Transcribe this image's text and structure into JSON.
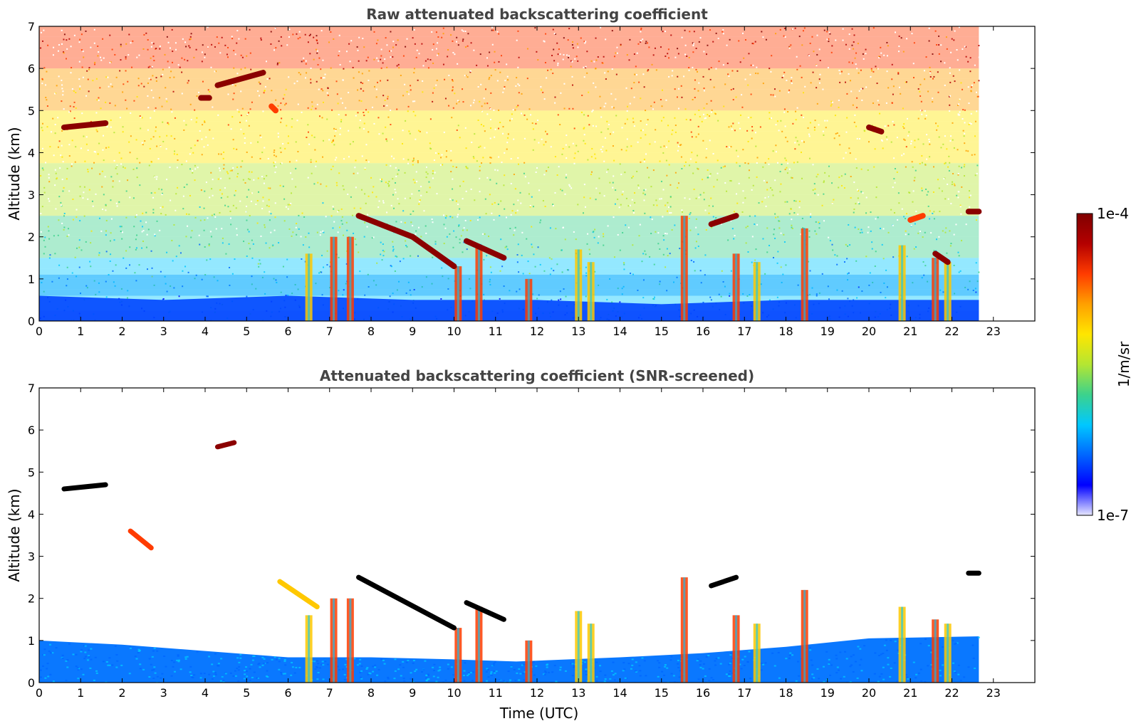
{
  "chart_data": [
    {
      "type": "heatmap",
      "title": "Raw attenuated backscattering coefficient",
      "xlabel": "",
      "ylabel": "Altitude (km)",
      "x_ticks": [
        "0",
        "1",
        "2",
        "3",
        "4",
        "5",
        "6",
        "7",
        "8",
        "9",
        "10",
        "11",
        "12",
        "13",
        "14",
        "15",
        "16",
        "17",
        "18",
        "19",
        "20",
        "21",
        "22",
        "23"
      ],
      "y_ticks": [
        "0",
        "1",
        "2",
        "3",
        "4",
        "5",
        "6",
        "7"
      ],
      "xlim": [
        0,
        24
      ],
      "ylim": [
        0,
        7
      ],
      "data_extent_hours": 22.65,
      "aerosol_layer_top_km": [
        [
          0,
          0.6
        ],
        [
          3,
          0.5
        ],
        [
          6,
          0.6
        ],
        [
          9,
          0.5
        ],
        [
          12,
          0.5
        ],
        [
          15,
          0.4
        ],
        [
          18,
          0.5
        ],
        [
          21,
          0.5
        ],
        [
          22.65,
          0.5
        ]
      ],
      "cloud_layers": [
        {
          "x": [
            0.6,
            1.6
          ],
          "y": [
            4.6,
            4.7
          ],
          "level": "max"
        },
        {
          "x": [
            3.9,
            4.1
          ],
          "y": [
            5.3,
            5.3
          ],
          "level": "max"
        },
        {
          "x": [
            4.3,
            5.4
          ],
          "y": [
            5.6,
            5.9
          ],
          "level": "max"
        },
        {
          "x": [
            5.6,
            5.7
          ],
          "y": [
            5.1,
            5.0
          ],
          "level": "high"
        },
        {
          "x": [
            7.7,
            9.0
          ],
          "y": [
            2.5,
            2.0
          ],
          "level": "max"
        },
        {
          "x": [
            9.0,
            10.0
          ],
          "y": [
            2.0,
            1.3
          ],
          "level": "max"
        },
        {
          "x": [
            10.3,
            11.2
          ],
          "y": [
            1.9,
            1.5
          ],
          "level": "max"
        },
        {
          "x": [
            16.2,
            16.8
          ],
          "y": [
            2.3,
            2.5
          ],
          "level": "max"
        },
        {
          "x": [
            20.0,
            20.3
          ],
          "y": [
            4.6,
            4.5
          ],
          "level": "max"
        },
        {
          "x": [
            21.0,
            21.3
          ],
          "y": [
            2.4,
            2.5
          ],
          "level": "high"
        },
        {
          "x": [
            21.6,
            21.9
          ],
          "y": [
            1.6,
            1.4
          ],
          "level": "max"
        },
        {
          "x": [
            22.4,
            22.65
          ],
          "y": [
            2.6,
            2.6
          ],
          "level": "max"
        }
      ],
      "precipitation_columns": [
        {
          "x": 6.5,
          "top_km": 1.6,
          "level": "mid"
        },
        {
          "x": 7.1,
          "top_km": 2.0,
          "level": "high"
        },
        {
          "x": 7.5,
          "top_km": 2.0,
          "level": "high"
        },
        {
          "x": 10.1,
          "top_km": 1.3,
          "level": "high"
        },
        {
          "x": 10.6,
          "top_km": 1.8,
          "level": "high"
        },
        {
          "x": 11.8,
          "top_km": 1.0,
          "level": "high"
        },
        {
          "x": 13.0,
          "top_km": 1.7,
          "level": "mid"
        },
        {
          "x": 13.3,
          "top_km": 1.4,
          "level": "mid"
        },
        {
          "x": 15.55,
          "top_km": 2.5,
          "level": "high"
        },
        {
          "x": 16.8,
          "top_km": 1.6,
          "level": "high"
        },
        {
          "x": 17.3,
          "top_km": 1.4,
          "level": "mid"
        },
        {
          "x": 18.45,
          "top_km": 2.2,
          "level": "high"
        },
        {
          "x": 20.8,
          "top_km": 1.8,
          "level": "mid"
        },
        {
          "x": 21.6,
          "top_km": 1.5,
          "level": "high"
        },
        {
          "x": 21.9,
          "top_km": 1.4,
          "level": "mid"
        }
      ]
    },
    {
      "type": "heatmap",
      "title": "Attenuated backscattering coefficient (SNR-screened)",
      "xlabel": "Time (UTC)",
      "ylabel": "Altitude (km)",
      "x_ticks": [
        "0",
        "1",
        "2",
        "3",
        "4",
        "5",
        "6",
        "7",
        "8",
        "9",
        "10",
        "11",
        "12",
        "13",
        "14",
        "15",
        "16",
        "17",
        "18",
        "19",
        "20",
        "21",
        "22",
        "23"
      ],
      "y_ticks": [
        "0",
        "1",
        "2",
        "3",
        "4",
        "5",
        "6",
        "7"
      ],
      "xlim": [
        0,
        24
      ],
      "ylim": [
        0,
        7
      ],
      "data_extent_hours": 22.65,
      "boundary_layer_top_km": [
        [
          0,
          1.0
        ],
        [
          2,
          0.9
        ],
        [
          4,
          0.75
        ],
        [
          6,
          0.6
        ],
        [
          8,
          0.6
        ],
        [
          10,
          0.55
        ],
        [
          11.5,
          0.5
        ],
        [
          14,
          0.6
        ],
        [
          16,
          0.7
        ],
        [
          18,
          0.85
        ],
        [
          20,
          1.05
        ],
        [
          22.65,
          1.1
        ]
      ],
      "screened_features": [
        {
          "x": [
            0.6,
            1.6
          ],
          "y": [
            4.6,
            4.7
          ],
          "level": "black"
        },
        {
          "x": [
            7.7,
            10.0
          ],
          "y": [
            2.5,
            1.3
          ],
          "level": "black"
        },
        {
          "x": [
            10.3,
            11.2
          ],
          "y": [
            1.9,
            1.5
          ],
          "level": "black"
        },
        {
          "x": [
            16.2,
            16.8
          ],
          "y": [
            2.3,
            2.5
          ],
          "level": "black"
        },
        {
          "x": [
            22.4,
            22.65
          ],
          "y": [
            2.6,
            2.6
          ],
          "level": "black"
        },
        {
          "x": [
            4.3,
            4.7
          ],
          "y": [
            5.6,
            5.7
          ],
          "level": "max"
        },
        {
          "x": [
            2.2,
            2.7
          ],
          "y": [
            3.6,
            3.2
          ],
          "level": "high"
        },
        {
          "x": [
            5.8,
            6.7
          ],
          "y": [
            2.4,
            1.8
          ],
          "level": "mid"
        }
      ]
    }
  ],
  "colorbar": {
    "label": "1/m/sr",
    "max_label": "1e-4",
    "min_label": "1e-7",
    "scale": "log",
    "colormap": [
      "#e6e6ff",
      "#0000ff",
      "#0066ff",
      "#00c8ff",
      "#3cd28c",
      "#b4e632",
      "#ffe600",
      "#ffa000",
      "#ff3c00",
      "#b40000",
      "#800000"
    ]
  }
}
